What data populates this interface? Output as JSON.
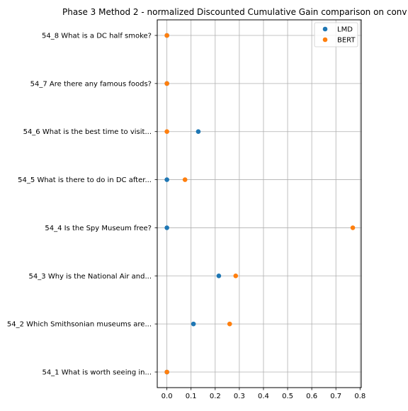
{
  "chart_data": {
    "type": "scatter",
    "title": "Phase 3 Method 2 - normalized Discounted Cumulative Gain comparison on conv",
    "xlabel": "",
    "ylabel": "",
    "xlim": [
      -0.04,
      0.805
    ],
    "xticks": [
      "0.0",
      "0.1",
      "0.2",
      "0.3",
      "0.4",
      "0.5",
      "0.6",
      "0.7",
      "0.8"
    ],
    "xtick_values": [
      0.0,
      0.1,
      0.2,
      0.3,
      0.4,
      0.5,
      0.6,
      0.7,
      0.8
    ],
    "categories": [
      "54_1 What is worth seeing in...",
      "54_2 Which Smithsonian museums are...",
      "54_3 Why is the National Air and...",
      "54_4 Is the Spy Museum free?",
      "54_5 What is there to do in DC after...",
      "54_6 What is the best time to visit...",
      "54_7 Are there any famous foods?",
      "54_8 What is a DC half smoke?"
    ],
    "series": [
      {
        "name": "LMD",
        "color": "#1f77b4",
        "values": [
          0.0,
          0.11,
          0.215,
          0.0,
          0.0,
          0.13,
          0.0,
          0.0
        ]
      },
      {
        "name": "BERT",
        "color": "#ff7f0e",
        "values": [
          0.0,
          0.26,
          0.285,
          0.77,
          0.075,
          0.0,
          0.0,
          0.0
        ]
      }
    ],
    "grid": true,
    "legend_position": "top-right"
  }
}
